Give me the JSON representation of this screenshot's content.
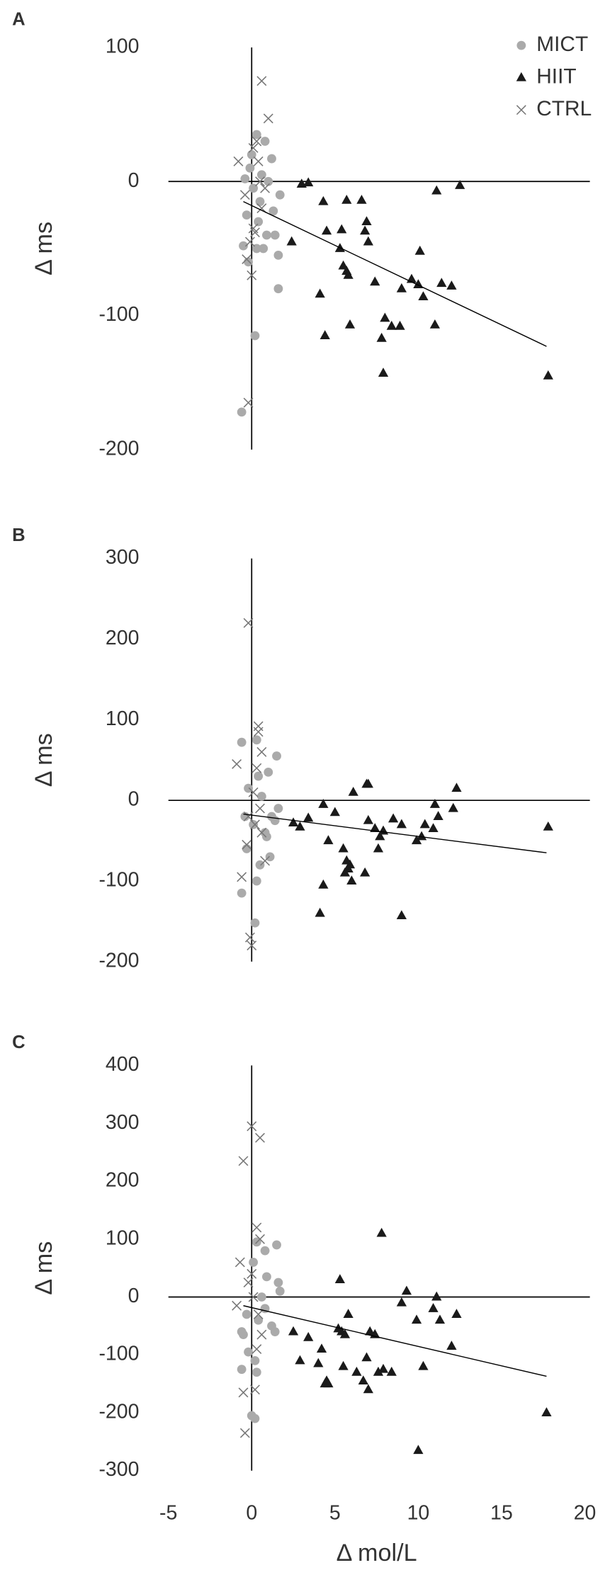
{
  "chart_data": [
    {
      "type": "scatter",
      "panel": "A",
      "y_label": "Δ ms",
      "xlim": [
        -5,
        20
      ],
      "ylim": [
        -200,
        100
      ],
      "yticks": [
        -200,
        -100,
        0,
        100
      ],
      "legend": "upper right",
      "series": [
        {
          "name": "MICT",
          "marker": "circle",
          "color": "#aaaaaa",
          "x": [
            -0.6,
            0.2,
            0.3,
            0.8,
            1.2,
            -0.4,
            0.5,
            0.9,
            1.4,
            1.6,
            1.6,
            -0.5,
            0.3,
            -0.2,
            1.0,
            1.7,
            0.0,
            0.6,
            -0.3,
            0.4,
            0.7,
            1.3,
            0.1,
            -0.1
          ],
          "values": [
            -172,
            -115,
            35,
            30,
            17,
            2,
            -15,
            -40,
            -40,
            -55,
            -80,
            -48,
            -50,
            -60,
            0,
            -10,
            20,
            5,
            -25,
            -30,
            -50,
            -22,
            -5,
            10
          ]
        },
        {
          "name": "HIIT",
          "marker": "triangle",
          "color": "#1a1a1a",
          "x": [
            3.0,
            3.4,
            2.4,
            4.3,
            4.5,
            5.3,
            5.4,
            5.5,
            5.7,
            5.8,
            5.7,
            6.6,
            6.9,
            6.8,
            7.0,
            4.1,
            4.4,
            5.9,
            7.4,
            7.8,
            7.9,
            8.0,
            8.4,
            8.9,
            9.0,
            9.6,
            10.0,
            10.1,
            10.3,
            11.0,
            11.1,
            11.4,
            12.0,
            12.5,
            17.8
          ],
          "values": [
            -2,
            -1,
            -45,
            -15,
            -37,
            -50,
            -36,
            -63,
            -67,
            -70,
            -14,
            -14,
            -30,
            -37,
            -45,
            -84,
            -115,
            -107,
            -75,
            -117,
            -143,
            -102,
            -108,
            -108,
            -80,
            -73,
            -77,
            -52,
            -86,
            -107,
            -7,
            -76,
            -78,
            -3,
            -145
          ]
        },
        {
          "name": "CTRL",
          "marker": "x",
          "color": "#777777",
          "x": [
            0.6,
            1.0,
            -0.2,
            -0.8,
            0.1,
            0.3,
            0.0,
            -0.3,
            0.2,
            0.6,
            -0.4,
            0.5,
            0.1,
            0.4,
            -0.1,
            0.8
          ],
          "values": [
            75,
            47,
            -165,
            15,
            25,
            30,
            -70,
            -58,
            -38,
            -20,
            -10,
            0,
            -35,
            15,
            -45,
            -5
          ]
        }
      ],
      "trendline": {
        "x": [
          -0.5,
          17.7
        ],
        "y": [
          -15,
          -123
        ]
      }
    },
    {
      "type": "scatter",
      "panel": "B",
      "y_label": "Δ ms",
      "xlim": [
        -5,
        20
      ],
      "ylim": [
        -200,
        300
      ],
      "yticks": [
        -200,
        -100,
        0,
        100,
        200,
        300
      ],
      "series": [
        {
          "marker": "circle",
          "color": "#aaaaaa",
          "x": [
            -0.6,
            0.3,
            1.0,
            1.5,
            -0.6,
            0.2,
            0.3,
            0.8,
            1.2,
            1.6,
            -0.3,
            0.5,
            1.1,
            -0.2,
            0.6,
            0.1,
            1.4,
            0.9,
            -0.4,
            0.4
          ],
          "values": [
            72,
            75,
            35,
            55,
            -115,
            -152,
            -100,
            -40,
            -20,
            -10,
            -60,
            -80,
            -70,
            15,
            5,
            -30,
            -25,
            -45,
            -20,
            30
          ]
        },
        {
          "marker": "triangle",
          "color": "#1a1a1a",
          "x": [
            2.5,
            2.9,
            3.4,
            4.3,
            4.6,
            5.0,
            5.5,
            5.7,
            5.8,
            5.6,
            6.0,
            5.9,
            6.1,
            6.9,
            7.0,
            7.4,
            7.7,
            7.9,
            8.5,
            9.0,
            9.0,
            9.9,
            10.2,
            10.4,
            10.9,
            11.2,
            11.0,
            12.1,
            12.3,
            4.1,
            4.3,
            6.8,
            7.6,
            17.8,
            7.0
          ],
          "values": [
            -28,
            -33,
            -22,
            -5,
            -50,
            -15,
            -60,
            -75,
            -85,
            -90,
            -100,
            -80,
            10,
            20,
            20,
            -35,
            -45,
            -38,
            -23,
            -30,
            -143,
            -50,
            -45,
            -30,
            -35,
            -20,
            -5,
            -10,
            15,
            -140,
            -105,
            -90,
            -60,
            -33,
            -25
          ]
        },
        {
          "marker": "x",
          "color": "#777777",
          "x": [
            -0.2,
            0.4,
            0.4,
            -0.9,
            0.6,
            -0.1,
            0.0,
            -0.6,
            -0.3,
            0.2,
            0.5,
            0.8,
            0.1,
            -0.2,
            0.3,
            0.6
          ],
          "values": [
            220,
            92,
            85,
            45,
            60,
            -170,
            -180,
            -95,
            -55,
            -30,
            -10,
            -75,
            10,
            -20,
            40,
            -40
          ]
        }
      ],
      "trendline": {
        "x": [
          -0.5,
          17.7
        ],
        "y": [
          -17,
          -65
        ]
      }
    },
    {
      "type": "scatter",
      "panel": "C",
      "y_label": "Δ ms",
      "x_label": "Δ mol/L",
      "xlim": [
        -5,
        20
      ],
      "xticks": [
        -5,
        0,
        5,
        10,
        15,
        20
      ],
      "ylim": [
        -300,
        400
      ],
      "yticks": [
        -300,
        -200,
        -100,
        0,
        100,
        200,
        300,
        400
      ],
      "series": [
        {
          "marker": "circle",
          "color": "#aaaaaa",
          "x": [
            -0.6,
            -0.6,
            -0.2,
            0.0,
            0.2,
            0.3,
            0.3,
            0.8,
            1.5,
            1.6,
            0.9,
            -0.5,
            0.4,
            1.2,
            1.4,
            0.1,
            0.6,
            -0.3,
            1.7,
            0.8,
            0.2
          ],
          "values": [
            -60,
            -125,
            -95,
            -205,
            -210,
            -130,
            95,
            80,
            90,
            25,
            35,
            -65,
            -40,
            -50,
            -60,
            60,
            0,
            -30,
            10,
            -20,
            -110
          ]
        },
        {
          "marker": "triangle",
          "color": "#1a1a1a",
          "x": [
            2.5,
            3.4,
            2.9,
            4.0,
            4.2,
            4.5,
            4.4,
            5.2,
            5.4,
            5.6,
            5.8,
            5.5,
            5.3,
            6.3,
            6.7,
            6.9,
            7.0,
            7.1,
            7.4,
            7.6,
            7.9,
            7.8,
            8.4,
            9.0,
            9.3,
            9.9,
            10.3,
            10.0,
            10.9,
            11.1,
            11.3,
            12.0,
            12.3,
            17.7,
            4.6
          ],
          "values": [
            -60,
            -70,
            -110,
            -115,
            -90,
            -145,
            -150,
            -55,
            -60,
            -65,
            -30,
            -120,
            30,
            -130,
            -145,
            -105,
            -160,
            -60,
            -65,
            -130,
            -125,
            110,
            -130,
            -10,
            10,
            -40,
            -120,
            -265,
            -20,
            0,
            -40,
            -85,
            -30,
            -200,
            -150
          ]
        },
        {
          "marker": "x",
          "color": "#777777",
          "x": [
            0.0,
            0.5,
            -0.5,
            0.3,
            -0.7,
            -0.9,
            -0.5,
            -0.4,
            0.2,
            0.0,
            0.3,
            0.6,
            0.1,
            0.4,
            -0.2,
            0.5
          ],
          "values": [
            295,
            275,
            235,
            120,
            60,
            -15,
            -165,
            -235,
            -160,
            40,
            -90,
            -65,
            0,
            -30,
            25,
            100
          ]
        }
      ],
      "trendline": {
        "x": [
          -0.5,
          17.7
        ],
        "y": [
          -15,
          -137
        ]
      }
    }
  ]
}
